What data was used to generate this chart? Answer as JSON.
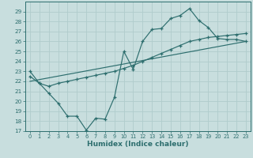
{
  "background_color": "#c8dede",
  "grid_color": "#b0cccc",
  "line_color": "#2d6e6e",
  "xlabel": "Humidex (Indice chaleur)",
  "ylim": [
    17,
    30
  ],
  "xlim": [
    -0.5,
    23.5
  ],
  "yticks": [
    17,
    18,
    19,
    20,
    21,
    22,
    23,
    24,
    25,
    26,
    27,
    28,
    29
  ],
  "xticks": [
    0,
    1,
    2,
    3,
    4,
    5,
    6,
    7,
    8,
    9,
    10,
    11,
    12,
    13,
    14,
    15,
    16,
    17,
    18,
    19,
    20,
    21,
    22,
    23
  ],
  "line1_x": [
    0,
    1,
    2,
    3,
    4,
    5,
    6,
    7,
    8,
    9,
    10,
    11,
    12,
    13,
    14,
    15,
    16,
    17,
    18,
    19,
    20,
    21,
    22,
    23
  ],
  "line1_y": [
    23.0,
    21.8,
    20.8,
    19.8,
    18.5,
    18.5,
    17.1,
    18.3,
    18.2,
    20.4,
    25.0,
    23.2,
    26.0,
    27.2,
    27.3,
    28.3,
    28.6,
    29.3,
    28.1,
    27.4,
    26.3,
    26.2,
    26.2,
    26.0
  ],
  "line2_x": [
    0,
    1,
    2,
    3,
    4,
    5,
    6,
    7,
    8,
    9,
    10,
    11,
    12,
    13,
    14,
    15,
    16,
    17,
    18,
    19,
    20,
    21,
    22,
    23
  ],
  "line2_y": [
    22.5,
    21.8,
    21.5,
    21.8,
    22.0,
    22.2,
    22.4,
    22.6,
    22.8,
    23.0,
    23.3,
    23.6,
    24.0,
    24.4,
    24.8,
    25.2,
    25.6,
    26.0,
    26.2,
    26.4,
    26.5,
    26.6,
    26.7,
    26.8
  ],
  "line3_x": [
    0,
    23
  ],
  "line3_y": [
    22.0,
    26.0
  ]
}
